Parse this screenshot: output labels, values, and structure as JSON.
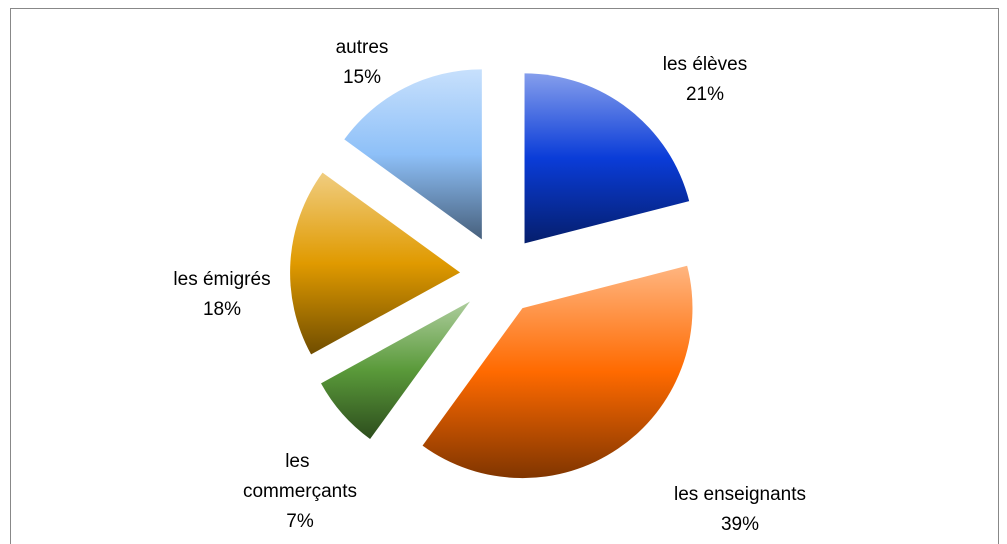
{
  "chart_data": {
    "type": "pie",
    "categories": [
      "les élèves",
      "les enseignants",
      "les commerçants",
      "les émigrés",
      "autres"
    ],
    "values": [
      21,
      39,
      7,
      18,
      15
    ],
    "value_labels": [
      "21%",
      "39%",
      "7%",
      "18%",
      "15%"
    ],
    "colors": [
      "#0a3cd8",
      "#ff6a00",
      "#5a9a3a",
      "#e09a00",
      "#8ec0f8"
    ]
  }
}
